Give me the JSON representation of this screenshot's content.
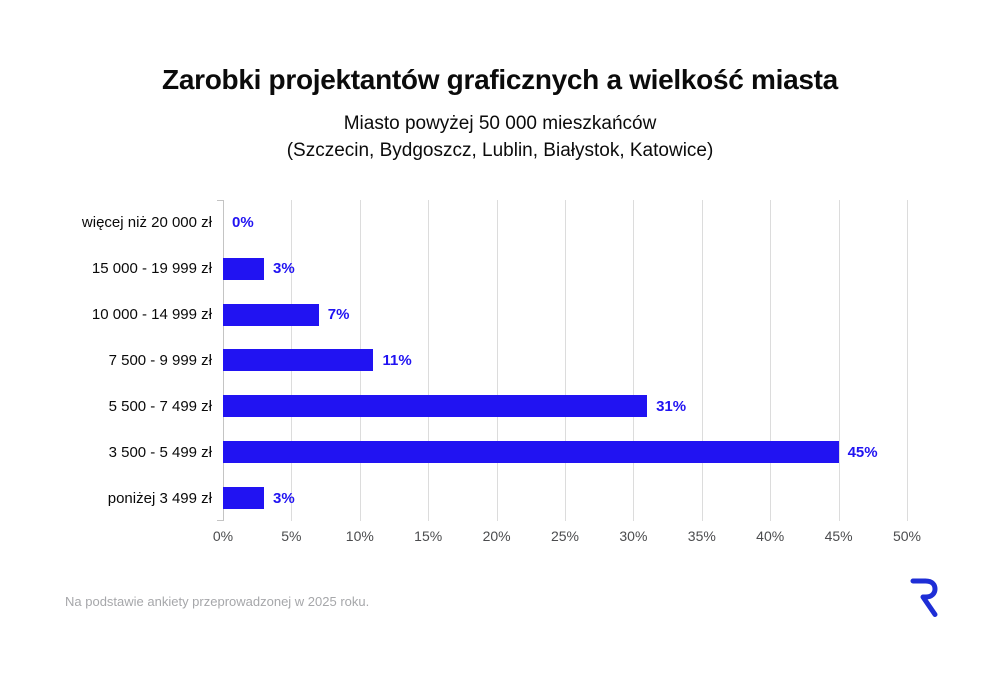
{
  "title": "Zarobki projektantów graficznych a wielkość miasta",
  "subtitle_line1": "Miasto powyżej 50 000 mieszkańców",
  "subtitle_line2": "(Szczecin, Bydgoszcz, Lublin, Białystok, Katowice)",
  "footer": {
    "source_note": "Na podstawie ankiety przeprowadzonej w 2025 roku.",
    "logo_icon": "r-logo"
  },
  "colors": {
    "bar": "#2113f2",
    "value_label": "#2113f2",
    "logo": "#1e2ed6",
    "gridline": "#dcdcdc",
    "axis_line": "#c4c4c4",
    "tick_label": "#4b4c4e",
    "category_label": "#0a0a0a",
    "footer_text": "#a6a7aa"
  },
  "chart_data": {
    "type": "bar",
    "orientation": "horizontal",
    "title": "Zarobki projektantów graficznych a wielkość miasta",
    "subtitle": "Miasto powyżej 50 000 mieszkańców (Szczecin, Bydgoszcz, Lublin, Białystok, Katowice)",
    "categories": [
      "więcej niż 20 000 zł",
      "15 000 - 19 999 zł",
      "10 000 - 14 999 zł",
      "7 500 - 9 999 zł",
      "5 500 - 7 499 zł",
      "3 500 - 5 499 zł",
      "poniżej 3 499 zł"
    ],
    "values": [
      0,
      3,
      7,
      11,
      31,
      45,
      3
    ],
    "value_labels": [
      "0%",
      "3%",
      "7%",
      "11%",
      "31%",
      "45%",
      "3%"
    ],
    "xlabel": "",
    "ylabel": "",
    "xlim": [
      0,
      50
    ],
    "x_ticks": [
      0,
      5,
      10,
      15,
      20,
      25,
      30,
      35,
      40,
      45,
      50
    ],
    "x_tick_labels": [
      "0%",
      "5%",
      "10%",
      "15%",
      "20%",
      "25%",
      "30%",
      "35%",
      "40%",
      "45%",
      "50%"
    ],
    "grid": "vertical",
    "legend": "none"
  }
}
